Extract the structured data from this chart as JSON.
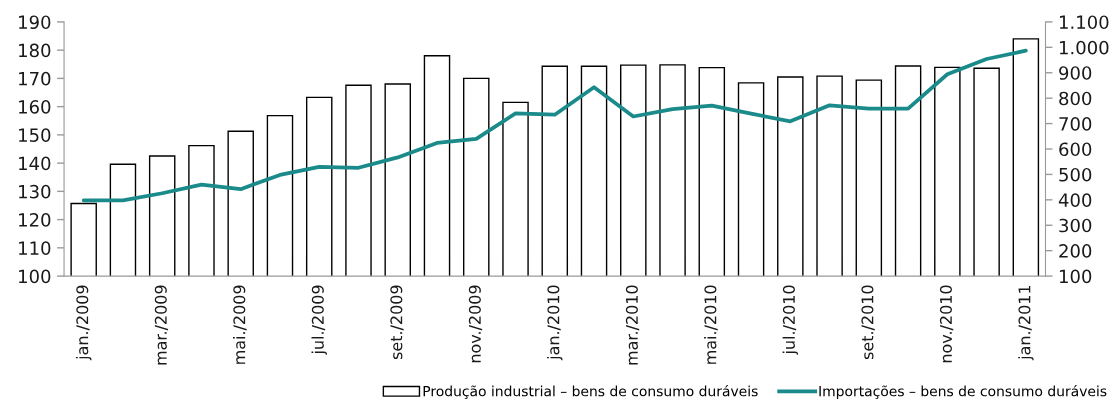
{
  "chart_data": {
    "type": "bar",
    "categories": [
      "jan./2009",
      null,
      "mar./2009",
      null,
      "mai./2009",
      null,
      "jul./2009",
      null,
      "set./2009",
      null,
      "nov./2009",
      null,
      "jan./2010",
      null,
      "mar./2010",
      null,
      "mai./2010",
      null,
      "jul./2010",
      null,
      "set./2010",
      null,
      "nov./2010",
      null,
      "jan./2011"
    ],
    "series": [
      {
        "name": "Produção industrial – bens de consumo duráveis",
        "color": "#ffffff",
        "values": [
          125.7,
          139.6,
          142.5,
          146.2,
          151.3,
          156.8,
          163.3,
          167.6,
          168.0,
          178.0,
          170.0,
          161.5,
          174.3,
          174.3,
          174.7,
          174.8,
          173.8,
          168.4,
          170.5,
          170.8,
          169.4,
          174.4,
          173.9,
          173.6,
          184.0
        ]
      },
      {
        "name": "Importações – bens de consumo duráveis",
        "type": "line",
        "axis": "y2",
        "color": "#1a8a8a",
        "values": [
          398,
          398,
          426,
          460,
          442,
          498,
          530,
          526,
          567,
          624,
          640,
          740,
          735,
          843,
          728,
          757,
          771,
          739,
          709,
          772,
          759,
          759,
          894,
          954,
          987
        ]
      }
    ],
    "ylim": [
      100,
      190
    ],
    "yticks": [
      100,
      110,
      120,
      130,
      140,
      150,
      160,
      170,
      180,
      190
    ],
    "y2lim": [
      100,
      1100
    ],
    "y2ticks": [
      100,
      200,
      300,
      400,
      500,
      600,
      700,
      800,
      900,
      {
        "value": 1000,
        "label": "1.000"
      },
      {
        "value": 1100,
        "label": "1.100"
      }
    ],
    "grid": false,
    "legend": "bottom right"
  }
}
